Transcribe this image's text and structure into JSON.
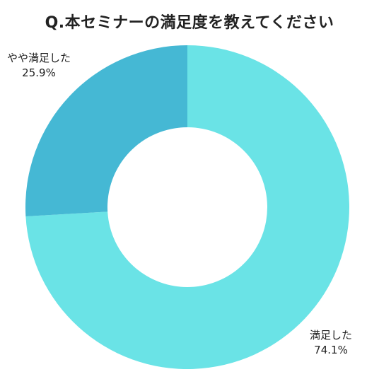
{
  "chart_data": {
    "type": "pie",
    "title": "Q.本セミナーの満足度を教えてください",
    "slices": [
      {
        "label": "満足した",
        "value": 74.1,
        "value_label": "74.1%",
        "color": "#6ae3e6"
      },
      {
        "label": "やや満足した",
        "value": 25.9,
        "value_label": "25.9%",
        "color": "#45b8d4"
      }
    ],
    "donut": true,
    "start_angle": "12 o'clock",
    "direction": "clockwise",
    "legend": "none (labels beside slices)"
  }
}
